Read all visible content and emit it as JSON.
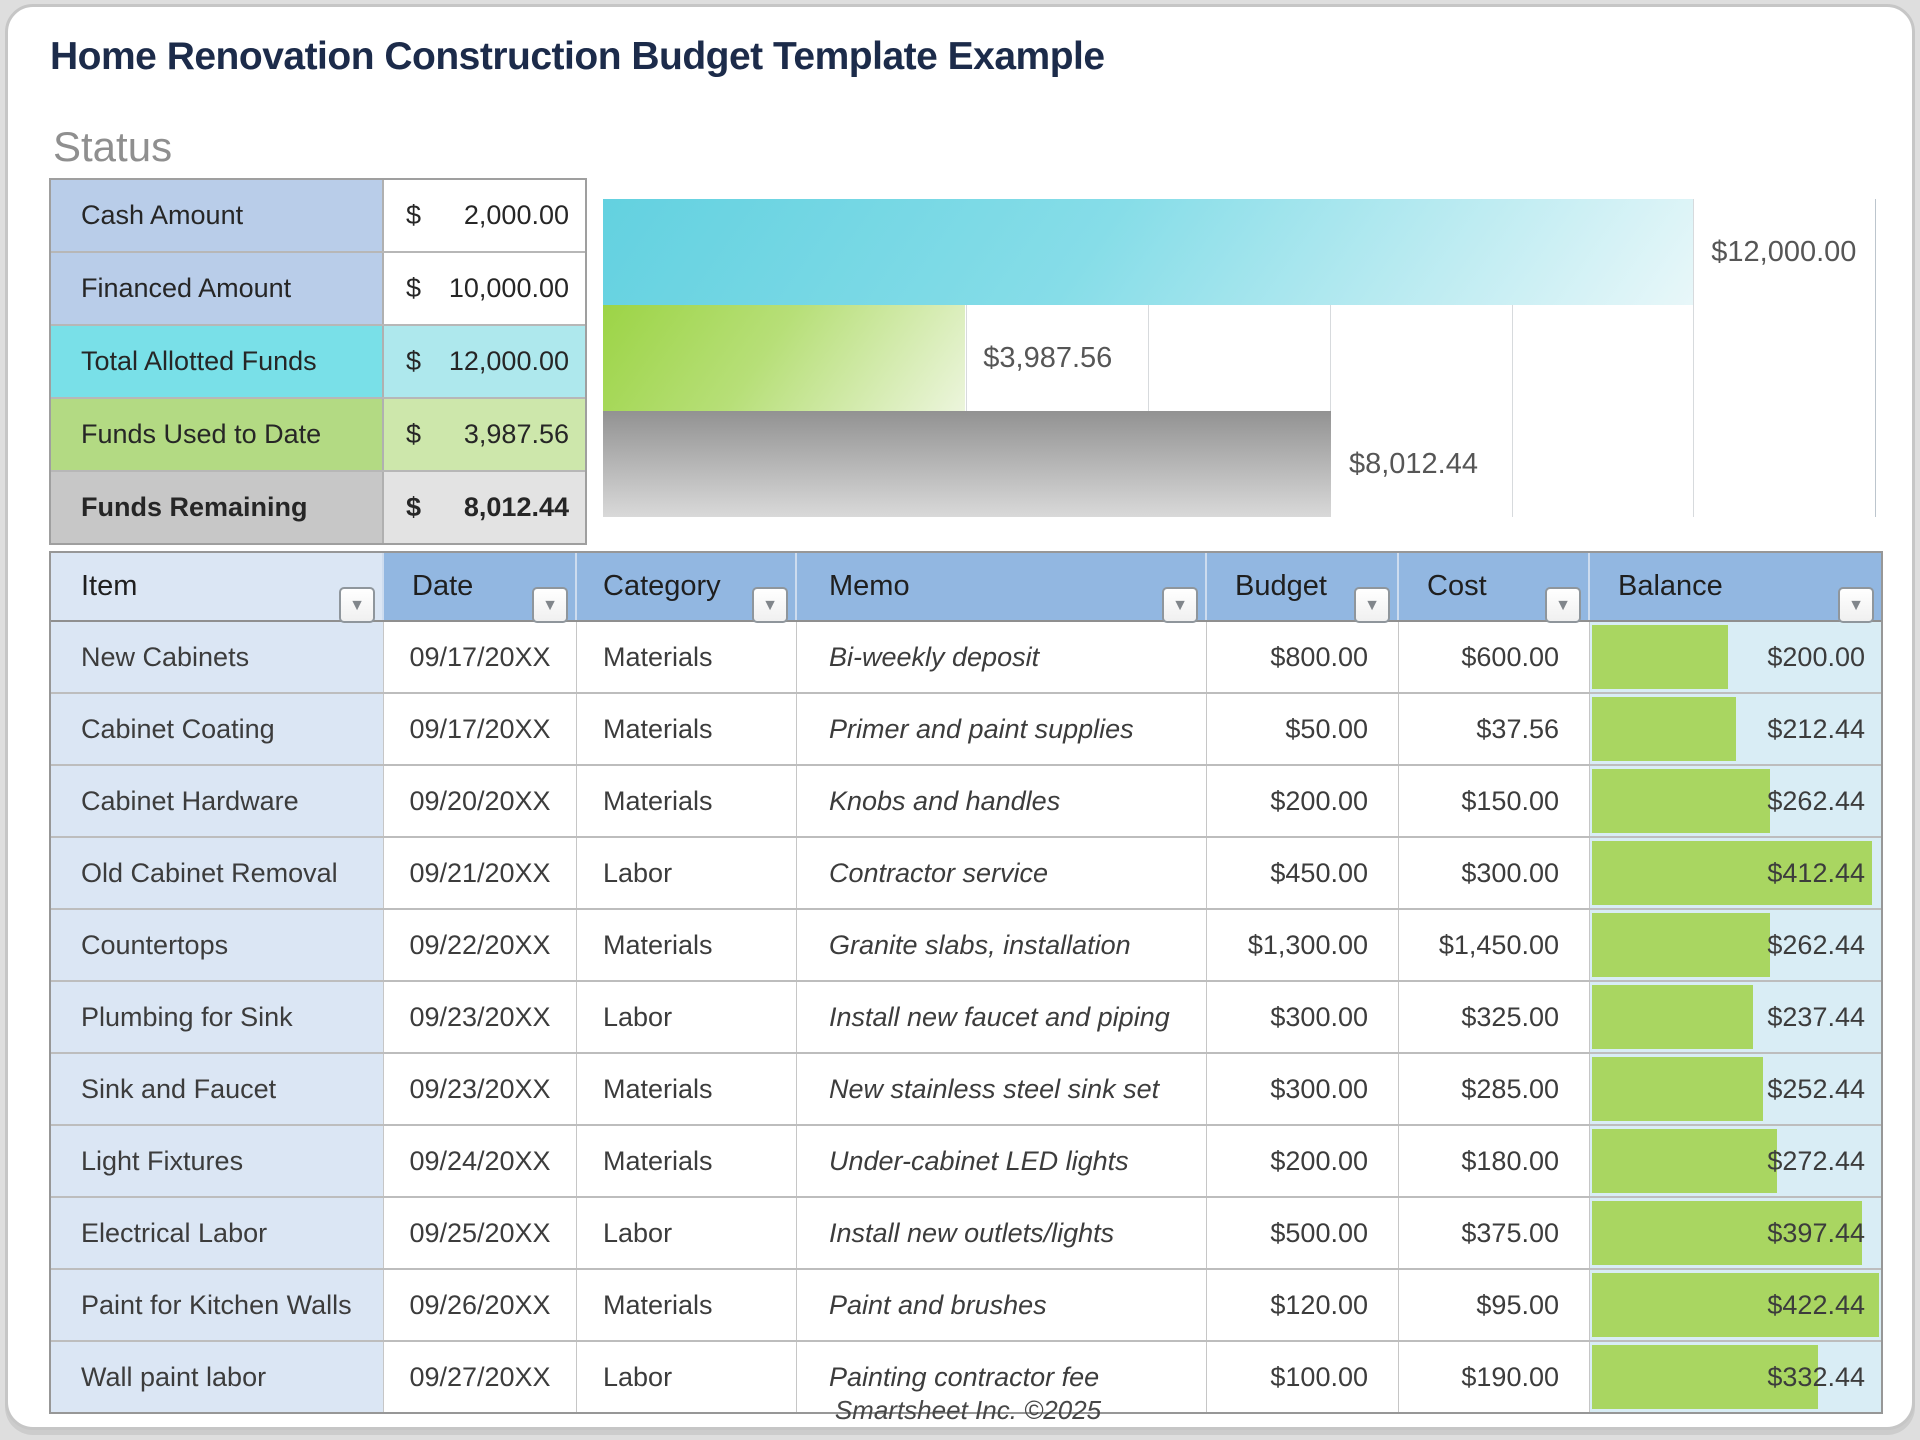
{
  "page": {
    "title": "Home Renovation Construction Budget Template Example",
    "footer": "Smartsheet Inc. ©2025"
  },
  "colors": {
    "title_navy": "#1c2b4a",
    "header_blue": "#92b7e1",
    "item_cell_blue": "#dbe6f4",
    "balance_cell_bg": "#d9edf5",
    "balance_bar_green": "#a9d661",
    "status_label_blue": "#b9cde9",
    "status_teal": "#79e0e8",
    "status_teal_light": "#aee8ed",
    "status_green": "#b3da83",
    "status_green_light": "#cde7ab",
    "status_gray": "#c7c7c7",
    "status_gray_light": "#e3e3e3",
    "chart_teal": "#63d1e0",
    "chart_green": "#9cd446",
    "chart_gray": "#929292"
  },
  "status": {
    "heading": "Status",
    "rows": [
      {
        "label": "Cash Amount",
        "currency": "$",
        "amount": "2,000.00",
        "style": "blue",
        "bold": false
      },
      {
        "label": "Financed Amount",
        "currency": "$",
        "amount": "10,000.00",
        "style": "blue",
        "bold": false
      },
      {
        "label": "Total Allotted Funds",
        "currency": "$",
        "amount": "12,000.00",
        "style": "teal",
        "bold": false
      },
      {
        "label": "Funds Used to Date",
        "currency": "$",
        "amount": "3,987.56",
        "style": "green",
        "bold": false
      },
      {
        "label": "Funds Remaining",
        "currency": "$",
        "amount": "8,012.44",
        "style": "gray",
        "bold": true
      }
    ]
  },
  "chart_data": {
    "type": "bar",
    "orientation": "horizontal",
    "title": "",
    "xlabel": "",
    "ylabel": "",
    "xlim": [
      0,
      14000
    ],
    "gridline_interval": 2000,
    "grid": true,
    "legend": false,
    "series": [
      {
        "name": "Total Allotted Funds",
        "value": 12000,
        "label": "$12,000.00",
        "style": "teal"
      },
      {
        "name": "Funds Used to Date",
        "value": 3987.56,
        "label": "$3,987.56",
        "style": "green"
      },
      {
        "name": "Funds Remaining",
        "value": 8012.44,
        "label": "$8,012.44",
        "style": "gray"
      }
    ]
  },
  "table": {
    "filter_icon": "▼",
    "columns": [
      {
        "label": "Item"
      },
      {
        "label": "Date"
      },
      {
        "label": "Category"
      },
      {
        "label": "Memo"
      },
      {
        "label": "Budget"
      },
      {
        "label": "Cost"
      },
      {
        "label": "Balance"
      }
    ],
    "balance_bar_max": 422.44,
    "rows": [
      {
        "item": "New Cabinets",
        "date": "09/17/20XX",
        "category": "Materials",
        "memo": "Bi-weekly deposit",
        "budget": "$800.00",
        "cost": "$600.00",
        "balance": "$200.00",
        "balance_value": 200.0
      },
      {
        "item": "Cabinet Coating",
        "date": "09/17/20XX",
        "category": "Materials",
        "memo": "Primer and paint supplies",
        "budget": "$50.00",
        "cost": "$37.56",
        "balance": "$212.44",
        "balance_value": 212.44
      },
      {
        "item": "Cabinet Hardware",
        "date": "09/20/20XX",
        "category": "Materials",
        "memo": "Knobs and handles",
        "budget": "$200.00",
        "cost": "$150.00",
        "balance": "$262.44",
        "balance_value": 262.44
      },
      {
        "item": "Old Cabinet Removal",
        "date": "09/21/20XX",
        "category": "Labor",
        "memo": "Contractor service",
        "budget": "$450.00",
        "cost": "$300.00",
        "balance": "$412.44",
        "balance_value": 412.44
      },
      {
        "item": "Countertops",
        "date": "09/22/20XX",
        "category": "Materials",
        "memo": "Granite slabs, installation",
        "budget": "$1,300.00",
        "cost": "$1,450.00",
        "balance": "$262.44",
        "balance_value": 262.44
      },
      {
        "item": "Plumbing for Sink",
        "date": "09/23/20XX",
        "category": "Labor",
        "memo": "Install new faucet and piping",
        "budget": "$300.00",
        "cost": "$325.00",
        "balance": "$237.44",
        "balance_value": 237.44
      },
      {
        "item": "Sink and Faucet",
        "date": "09/23/20XX",
        "category": "Materials",
        "memo": "New stainless steel sink set",
        "budget": "$300.00",
        "cost": "$285.00",
        "balance": "$252.44",
        "balance_value": 252.44
      },
      {
        "item": "Light Fixtures",
        "date": "09/24/20XX",
        "category": "Materials",
        "memo": "Under-cabinet LED lights",
        "budget": "$200.00",
        "cost": "$180.00",
        "balance": "$272.44",
        "balance_value": 272.44
      },
      {
        "item": "Electrical Labor",
        "date": "09/25/20XX",
        "category": "Labor",
        "memo": "Install new outlets/lights",
        "budget": "$500.00",
        "cost": "$375.00",
        "balance": "$397.44",
        "balance_value": 397.44
      },
      {
        "item": "Paint for Kitchen Walls",
        "date": "09/26/20XX",
        "category": "Materials",
        "memo": "Paint and brushes",
        "budget": "$120.00",
        "cost": "$95.00",
        "balance": "$422.44",
        "balance_value": 422.44
      },
      {
        "item": "Wall paint labor",
        "date": "09/27/20XX",
        "category": "Labor",
        "memo": "Painting contractor fee",
        "budget": "$100.00",
        "cost": "$190.00",
        "balance": "$332.44",
        "balance_value": 332.44
      }
    ]
  }
}
